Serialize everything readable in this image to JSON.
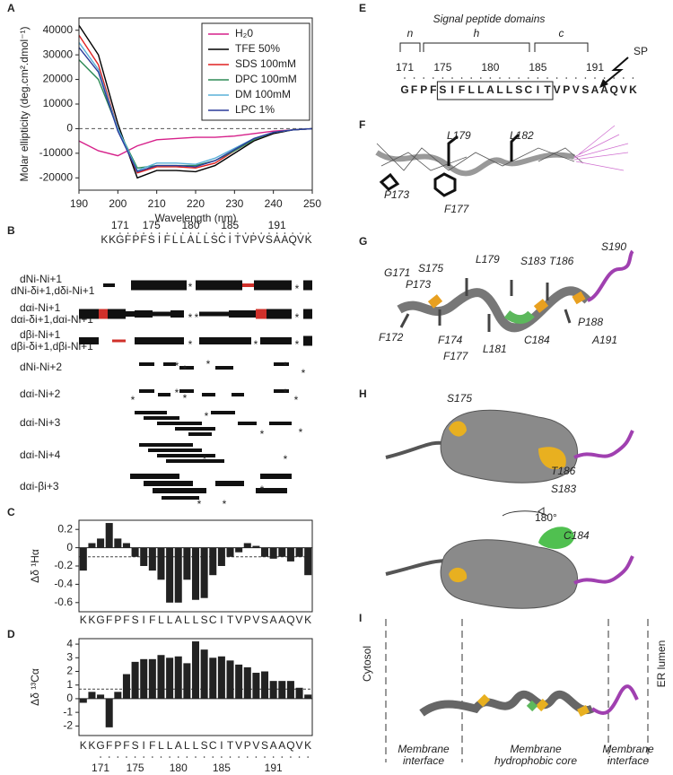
{
  "panel_labels": [
    "A",
    "B",
    "C",
    "D",
    "E",
    "F",
    "G",
    "H",
    "I"
  ],
  "residues": [
    "K",
    "K",
    "G",
    "F",
    "P",
    "F",
    "S",
    "I",
    "F",
    "L",
    "L",
    "A",
    "L",
    "L",
    "S",
    "C",
    "I",
    "T",
    "V",
    "P",
    "V",
    "S",
    "A",
    "A",
    "Q",
    "V",
    "K"
  ],
  "residue_colors": [
    "#3d9ad8",
    "#3d9ad8",
    "#222",
    "#222",
    "#d0302a",
    "#222",
    "#222",
    "#222",
    "#222",
    "#222",
    "#222",
    "#222",
    "#222",
    "#222",
    "#222",
    "#222",
    "#222",
    "#222",
    "#222",
    "#d0302a",
    "#222",
    "#222",
    "#222",
    "#b04fc0",
    "#b04fc0",
    "#b04fc0",
    "#b04fc0"
  ],
  "residue_numbers": [
    171,
    175,
    180,
    185,
    191
  ],
  "chart_data": [
    {
      "type": "line",
      "x": [
        190,
        195,
        200,
        205,
        210,
        215,
        220,
        225,
        230,
        235,
        240,
        245,
        250
      ],
      "xlabel": "Wavelength (nm)",
      "ylabel": "Molar ellipticity (deg.cm².dmol⁻¹)",
      "xlim": [
        190,
        250
      ],
      "xticks": [
        190,
        200,
        210,
        220,
        230,
        240,
        250
      ],
      "ylim": [
        -25000,
        45000
      ],
      "yticks": [
        -20000,
        -10000,
        0,
        10000,
        20000,
        30000,
        40000
      ],
      "series": [
        {
          "name": "H₂0",
          "color": "#d6208a",
          "values": [
            -5000,
            -9000,
            -11000,
            -7000,
            -4500,
            -4000,
            -3500,
            -3500,
            -3000,
            -2000,
            -1000,
            -500,
            0
          ]
        },
        {
          "name": "TFE 50%",
          "color": "#000000",
          "values": [
            42000,
            30000,
            2000,
            -20000,
            -17000,
            -17000,
            -17500,
            -15000,
            -10000,
            -5000,
            -2000,
            -500,
            0
          ]
        },
        {
          "name": "SDS 100mM",
          "color": "#e02020",
          "values": [
            38000,
            26000,
            0,
            -18000,
            -15500,
            -15500,
            -16000,
            -14000,
            -9000,
            -4500,
            -1500,
            -500,
            0
          ]
        },
        {
          "name": "DPC 100mM",
          "color": "#2e8b57",
          "values": [
            28000,
            20000,
            0,
            -16000,
            -15000,
            -15000,
            -15000,
            -13000,
            -9000,
            -4500,
            -1500,
            -500,
            0
          ]
        },
        {
          "name": "DM 100mM",
          "color": "#5ab0d8",
          "values": [
            35000,
            24000,
            0,
            -17000,
            -14000,
            -14000,
            -14500,
            -12000,
            -8000,
            -4000,
            -1500,
            -500,
            0
          ]
        },
        {
          "name": "LPC  1%",
          "color": "#2b3b9a",
          "values": [
            33000,
            23000,
            -1000,
            -17500,
            -15000,
            -15000,
            -15500,
            -13000,
            -8500,
            -4000,
            -1500,
            -500,
            0
          ]
        }
      ]
    },
    {
      "type": "bar",
      "ylabel": "Δδ ¹Hα",
      "color": "#222222",
      "categories": [
        "K",
        "K",
        "G",
        "F",
        "P",
        "F",
        "S",
        "I",
        "F",
        "L",
        "L",
        "A",
        "L",
        "L",
        "S",
        "C",
        "I",
        "T",
        "V",
        "P",
        "V",
        "S",
        "A",
        "A",
        "Q",
        "V",
        "K"
      ],
      "values": [
        -0.25,
        0.05,
        0.1,
        0.27,
        0.1,
        0.05,
        -0.1,
        -0.2,
        -0.25,
        -0.35,
        -0.6,
        -0.6,
        -0.35,
        -0.57,
        -0.55,
        -0.3,
        -0.2,
        -0.1,
        -0.05,
        0.05,
        0.02,
        -0.1,
        -0.12,
        -0.1,
        -0.15,
        -0.1,
        -0.3
      ],
      "ylim": [
        -0.7,
        0.3
      ],
      "yticks": [
        -0.6,
        -0.4,
        -0.2,
        0,
        0.2
      ],
      "reference_line": -0.1
    },
    {
      "type": "bar",
      "ylabel": "Δδ ¹³Cα",
      "color": "#222222",
      "categories": [
        "K",
        "K",
        "G",
        "F",
        "P",
        "F",
        "S",
        "I",
        "F",
        "L",
        "L",
        "A",
        "L",
        "L",
        "S",
        "C",
        "I",
        "T",
        "V",
        "P",
        "V",
        "S",
        "A",
        "A",
        "Q",
        "V",
        "K"
      ],
      "values": [
        -0.3,
        0.5,
        0.3,
        -2.1,
        0.5,
        1.8,
        2.7,
        2.9,
        2.9,
        3.2,
        3.0,
        3.1,
        2.6,
        4.2,
        3.6,
        3.0,
        3.1,
        2.8,
        2.5,
        2.3,
        1.9,
        2.0,
        1.3,
        1.3,
        1.3,
        0.8,
        0.3
      ],
      "ylim": [
        -2.7,
        4.4
      ],
      "yticks": [
        -2,
        -1,
        0,
        1,
        2,
        3,
        4
      ],
      "reference_line": 0.7
    }
  ],
  "panel_b": {
    "asterisk": "*",
    "rows": [
      {
        "label": "dNi-Ni+1",
        "sublabel": "dNi-δi+1,dδi-Ni+1"
      },
      {
        "label": "dαi-Ni+1",
        "sublabel": "dαi-δi+1,dαi-Ni+1"
      },
      {
        "label": "dβi-Ni+1",
        "sublabel": "dβi-δi+1,dβi-Ni+1"
      },
      {
        "label": "dNi-Ni+2"
      },
      {
        "label": "dαi-Ni+2"
      },
      {
        "label": "dαi-Ni+3"
      },
      {
        "label": "dαi-Ni+4"
      },
      {
        "label": "dαi-βi+3"
      }
    ]
  },
  "panel_e": {
    "title": "Signal peptide domains",
    "domains": [
      "n",
      "h",
      "c"
    ],
    "cleavage": "SP",
    "colors": [
      "#888",
      "#888",
      "#888",
      "#888",
      "#e8a020",
      "#888",
      "#888",
      "#888",
      "#888",
      "#888",
      "#888",
      "#888",
      "#e8a020",
      "#5cb85c",
      "#888",
      "#e8a020",
      "#888",
      "#888",
      "#888",
      "#e8a020",
      "#e8a020",
      "#b04fc0",
      "#b04fc0",
      "#b04fc0",
      "#b04fc0"
    ]
  },
  "panel_f": {
    "labels": [
      "L179",
      "L182",
      "P173",
      "F177"
    ]
  },
  "panel_g": {
    "labels": [
      "G171",
      "S175",
      "P173",
      "L179",
      "S183",
      "T186",
      "S190",
      "F172",
      "F174",
      "F177",
      "L181",
      "C184",
      "P188",
      "A191"
    ]
  },
  "panel_h": {
    "labels": [
      "S175",
      "T186",
      "S183",
      "C184"
    ],
    "rotation": "180°"
  },
  "panel_i": {
    "sides": [
      "Cytosol",
      "ER lumen"
    ],
    "regions": [
      [
        "Membrane",
        "interface"
      ],
      [
        "Membrane",
        "hydrophobic core"
      ],
      [
        "Membrane",
        "interface"
      ]
    ]
  }
}
